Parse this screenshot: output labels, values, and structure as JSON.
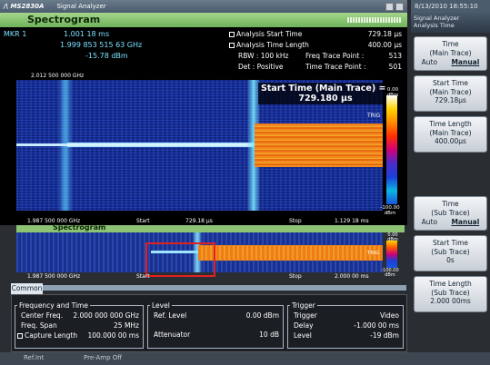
{
  "titlebar": {
    "logo": "/\\ MS2830A",
    "model": "",
    "app": "Signal Analyzer"
  },
  "spectrogram": {
    "title": "Spectrogram",
    "marker_label": "MKR 1",
    "marker_time": "1.001 18  ms",
    "marker_freq": "1.999 853 515 63  GHz",
    "marker_level": "-15.78  dBm",
    "analysis_start_label": "Analysis Start Time",
    "analysis_start_value": "729.18 µs",
    "analysis_length_label": "Analysis Time Length",
    "analysis_length_value": "400.00 µs",
    "rbw": "RBW :   100 kHz",
    "freq_trace_point_label": "Freq Trace Point :",
    "freq_trace_point_value": "513",
    "det": "Det :   Positive",
    "time_trace_point_label": "Time Trace Point :",
    "time_trace_point_value": "501",
    "top_freq": "2.012 500 000 GHz",
    "bottom_freq": "1.987 500 000 GHz",
    "start_label": "Start",
    "start_value": "729.18 µs",
    "stop_label": "Stop",
    "stop_value": "1.129 18 ms",
    "badge_title": "Start Time (Main Trace) =",
    "badge_value": "729.180 µs",
    "cbar_top": "0.00 dBm",
    "cbar_bottom": "-100.00 dBm",
    "trig": "TRIG"
  },
  "spectrogram2": {
    "title": "Spectrogram",
    "bottom_freq": "1.987 500 000 GHz",
    "start_label": "Start",
    "stop_label": "Stop",
    "stop_value": "2.000 00 ms",
    "cbar_top": "0.00 dBm",
    "cbar_bottom": "-100.00 dBm",
    "trig": "TRIG"
  },
  "common": {
    "tab": "Common",
    "freq_group": "Frequency and Time",
    "center_freq_label": "Center Freq.",
    "center_freq_value": "2.000 000 000 GHz",
    "freq_span_label": "Freq. Span",
    "freq_span_value": "25 MHz",
    "capture_length_label": "Capture Length",
    "capture_length_value": "100.000 00 ms",
    "level_group": "Level",
    "ref_level_label": "Ref. Level",
    "ref_level_value": "0.00 dBm",
    "attenuator_label": "Attenuator",
    "attenuator_value": "10 dB",
    "trigger_group": "Trigger",
    "trigger_label": "Trigger",
    "trigger_value": "Video",
    "delay_label": "Delay",
    "delay_value": "-1.000 00 ms",
    "level_label": "Level",
    "level_value": "-19 dBm"
  },
  "status": {
    "ref": "Ref.Int",
    "preamp": "Pre-Amp Off"
  },
  "right_panel": {
    "datetime": "8/13/2010 18:55:10",
    "head_title": "Signal Analyzer",
    "head_sub": "Analysis Time",
    "softkeys": [
      {
        "l1": "Time",
        "l2": "(Main Trace)",
        "opt1": "Auto",
        "opt2": "Manual"
      },
      {
        "l1": "Start Time",
        "l2": "(Main Trace)",
        "v": "729.18µs"
      },
      {
        "l1": "Time Length",
        "l2": "(Main Trace)",
        "v": "400.00µs"
      },
      {
        "l1": "Time",
        "l2": "(Sub Trace)",
        "opt1": "Auto",
        "opt2": "Manual"
      },
      {
        "l1": "Start Time",
        "l2": "(Sub Trace)",
        "v": "0s"
      },
      {
        "l1": "Time Length",
        "l2": "(Sub Trace)",
        "v": "2.000 00ms"
      }
    ]
  }
}
